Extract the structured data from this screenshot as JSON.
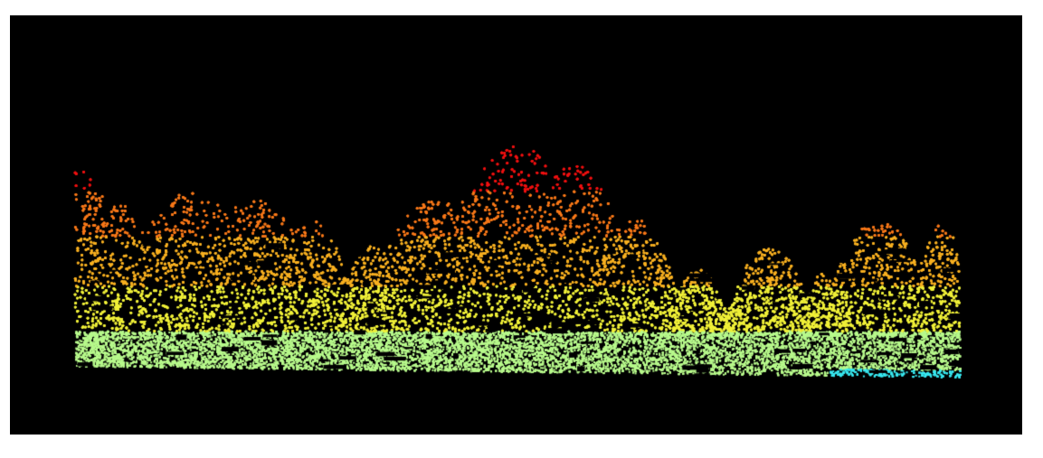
{
  "scene": {
    "description_kind": "lidar-point-cloud-side-view",
    "background_color": "#000000",
    "page_background": "#ffffff"
  },
  "color_ramp": {
    "ground_low": "#38e8f0",
    "ground": "#b8fa8c",
    "low_canopy": "#f0f038",
    "mid_canopy": "#f8b020",
    "upper_canopy": "#f87818",
    "top_canopy": "#f01010"
  }
}
